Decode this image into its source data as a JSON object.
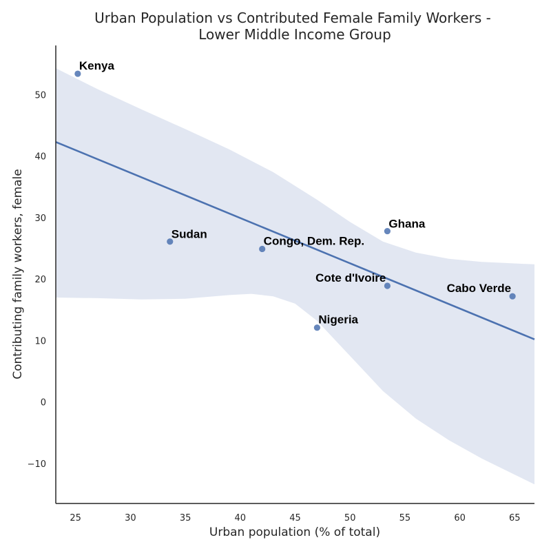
{
  "chart_data": {
    "type": "scatter",
    "title": "Urban Population vs Contributed Female Family Workers -",
    "subtitle": "Lower Middle Income Group",
    "xlabel": "Urban population (% of total)",
    "ylabel": "Contributing family workers, female",
    "xlim": [
      23.2,
      66.8
    ],
    "ylim": [
      -16.5,
      58
    ],
    "xticks": [
      25,
      30,
      35,
      40,
      45,
      50,
      55,
      60,
      65
    ],
    "yticks": [
      -10,
      0,
      10,
      20,
      30,
      40,
      50
    ],
    "grid": false,
    "points": [
      {
        "label": "Kenya",
        "x": 25.2,
        "y": 53.4
      },
      {
        "label": "Sudan",
        "x": 33.6,
        "y": 26.1
      },
      {
        "label": "Congo, Dem. Rep.",
        "x": 42.0,
        "y": 24.9
      },
      {
        "label": "Ghana",
        "x": 53.4,
        "y": 27.8
      },
      {
        "label": "Cote d'Ivoire",
        "x": 53.4,
        "y": 18.9
      },
      {
        "label": "Nigeria",
        "x": 47.0,
        "y": 12.1
      },
      {
        "label": "Cabo Verde",
        "x": 64.8,
        "y": 17.2
      }
    ],
    "regression": {
      "x": [
        23.2,
        66.8
      ],
      "y": [
        42.3,
        10.2
      ]
    },
    "confidence_band": {
      "upper": [
        [
          23.2,
          54.3
        ],
        [
          27,
          50.9
        ],
        [
          31,
          47.6
        ],
        [
          35,
          44.4
        ],
        [
          39,
          41.1
        ],
        [
          43,
          37.4
        ],
        [
          47,
          32.9
        ],
        [
          50,
          29.3
        ],
        [
          53,
          26.1
        ],
        [
          56,
          24.3
        ],
        [
          59,
          23.3
        ],
        [
          62,
          22.8
        ],
        [
          66.8,
          22.4
        ]
      ],
      "lower": [
        [
          23.2,
          17.0
        ],
        [
          27,
          16.9
        ],
        [
          31,
          16.7
        ],
        [
          35,
          16.8
        ],
        [
          39,
          17.4
        ],
        [
          41,
          17.6
        ],
        [
          43,
          17.2
        ],
        [
          45,
          16.0
        ],
        [
          47,
          13.2
        ],
        [
          50,
          7.5
        ],
        [
          53,
          1.8
        ],
        [
          56,
          -2.7
        ],
        [
          59,
          -6.2
        ],
        [
          62,
          -9.2
        ],
        [
          66.8,
          -13.4
        ]
      ]
    },
    "colors": {
      "point": "#4C72B0",
      "line": "#4C72B0",
      "band": "#DDE3F0"
    }
  }
}
